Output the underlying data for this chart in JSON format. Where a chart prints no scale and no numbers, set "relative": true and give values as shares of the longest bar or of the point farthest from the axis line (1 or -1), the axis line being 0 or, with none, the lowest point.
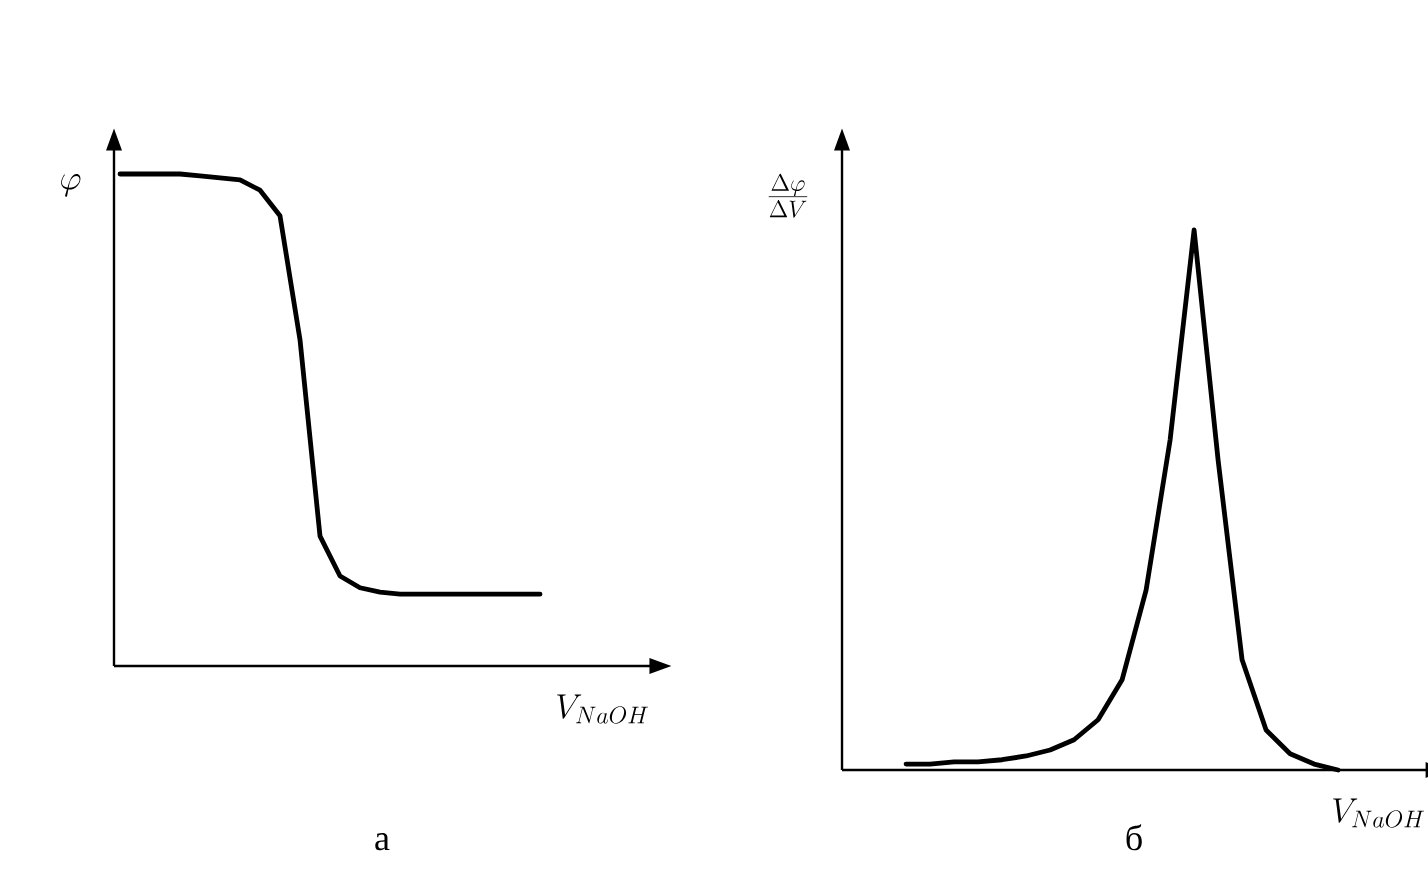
{
  "chart_data": [
    {
      "type": "line",
      "title": "а",
      "xlabel": "V_{NaOH}",
      "ylabel": "\\varphi",
      "relative": true,
      "color": "#000000",
      "categories": [
        null,
        null,
        null,
        null,
        null,
        null,
        null,
        null,
        null,
        null,
        null,
        null,
        null,
        null,
        null,
        null,
        null,
        null,
        null,
        null,
        null,
        null
      ],
      "values": [
        1,
        1,
        1,
        1,
        0.996,
        0.992,
        0.988,
        0.967,
        0.915,
        0.663,
        0.264,
        0.183,
        0.159,
        0.15,
        0.146,
        0.146,
        0.146,
        0.146,
        0.146,
        0.146,
        0.146,
        0.146
      ]
    },
    {
      "type": "line",
      "title": "б",
      "xlabel": "V_{NaOH}",
      "ylabel": "\\frac{\\Delta\\varphi}{\\Delta V}",
      "relative": true,
      "color": "#000000",
      "categories": [
        null,
        null,
        null,
        null,
        null,
        null,
        null,
        null,
        null,
        null,
        null,
        null,
        null,
        null,
        null,
        null,
        null,
        null,
        null
      ],
      "values": [
        0.011,
        0.011,
        0.015,
        0.015,
        0.019,
        0.026,
        0.037,
        0.056,
        0.093,
        0.167,
        0.333,
        0.611,
        1,
        0.574,
        0.204,
        0.074,
        0.03,
        0.011,
        0
      ]
    }
  ]
}
